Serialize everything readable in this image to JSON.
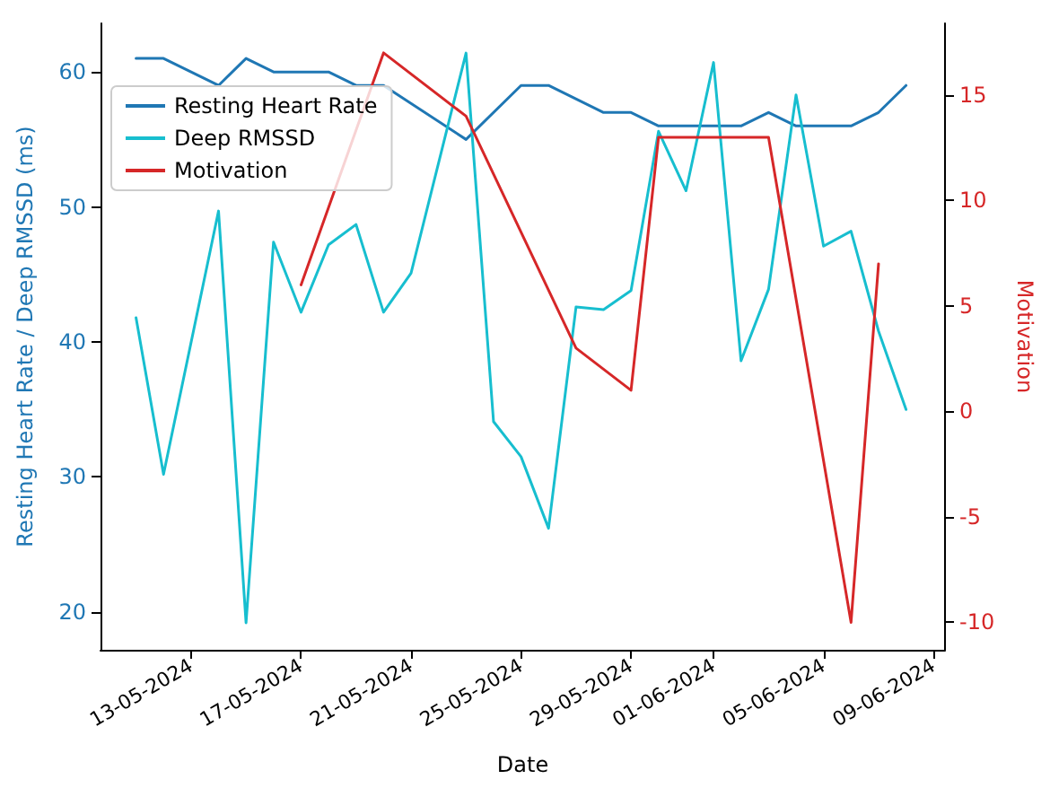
{
  "chart_data": {
    "type": "line",
    "xlabel": "Date",
    "ylabel": "Resting Heart Rate / Deep RMSSD (ms)",
    "y2label": "Motivation",
    "xlim": [
      "2024-05-09T17:00",
      "2024-06-09T10:00"
    ],
    "xticks": [
      {
        "value": "2024-05-13",
        "label": "13-05-2024"
      },
      {
        "value": "2024-05-17",
        "label": "17-05-2024"
      },
      {
        "value": "2024-05-21",
        "label": "21-05-2024"
      },
      {
        "value": "2024-05-25",
        "label": "25-05-2024"
      },
      {
        "value": "2024-05-29",
        "label": "29-05-2024"
      },
      {
        "value": "2024-06-01",
        "label": "01-06-2024"
      },
      {
        "value": "2024-06-05",
        "label": "05-06-2024"
      },
      {
        "value": "2024-06-09",
        "label": "09-06-2024"
      }
    ],
    "ylim": [
      17.2,
      63.6
    ],
    "yticks": [
      20,
      30,
      40,
      50,
      60
    ],
    "y2lim": [
      -11.3,
      18.4
    ],
    "y2ticks": [
      -10,
      -5,
      0,
      5,
      10,
      15
    ],
    "grid": false,
    "legend": "top left",
    "marker": "none",
    "line_style": "solid",
    "series": [
      {
        "name": "Resting Heart Rate",
        "color": "#1f77b4",
        "x": [
          "2024-05-11",
          "2024-05-12",
          "2024-05-14",
          "2024-05-15",
          "2024-05-16",
          "2024-05-18",
          "2024-05-19",
          "2024-05-20",
          "2024-05-23",
          "2024-05-25",
          "2024-05-26",
          "2024-05-28",
          "2024-05-29",
          "2024-05-30",
          "2024-06-02",
          "2024-06-03",
          "2024-06-04",
          "2024-06-06",
          "2024-06-07",
          "2024-06-08"
        ],
        "values": [
          61,
          61,
          59,
          61,
          60,
          60,
          59,
          59,
          55,
          59,
          59,
          57,
          57,
          56,
          56,
          57,
          56,
          56,
          57,
          59
        ]
      },
      {
        "name": "Deep RMSSD",
        "color": "#17becf",
        "x": [
          "2024-05-11",
          "2024-05-12",
          "2024-05-14",
          "2024-05-15",
          "2024-05-16",
          "2024-05-17",
          "2024-05-18",
          "2024-05-19",
          "2024-05-20",
          "2024-05-21",
          "2024-05-23",
          "2024-05-24",
          "2024-05-25",
          "2024-05-26",
          "2024-05-27",
          "2024-05-28",
          "2024-05-29",
          "2024-05-30",
          "2024-05-31",
          "2024-06-01",
          "2024-06-02",
          "2024-06-03",
          "2024-06-04",
          "2024-06-05",
          "2024-06-06",
          "2024-06-07",
          "2024-06-08"
        ],
        "values": [
          41.8,
          30.2,
          49.7,
          19.2,
          47.4,
          42.2,
          47.2,
          48.7,
          42.2,
          45.1,
          61.4,
          34.1,
          31.5,
          26.2,
          42.6,
          42.4,
          43.8,
          55.6,
          51.2,
          60.7,
          38.6,
          43.9,
          58.3,
          47.1,
          48.2,
          40.8,
          35.0
        ]
      },
      {
        "name": "Motivation",
        "color": "#d62728",
        "axis": "y2",
        "x": [
          "2024-05-17",
          "2024-05-20",
          "2024-05-23",
          "2024-05-27",
          "2024-05-29",
          "2024-05-30",
          "2024-06-03",
          "2024-06-06",
          "2024-06-07"
        ],
        "values": [
          6,
          17,
          14,
          3,
          1,
          13,
          13,
          -10,
          7
        ]
      }
    ]
  }
}
